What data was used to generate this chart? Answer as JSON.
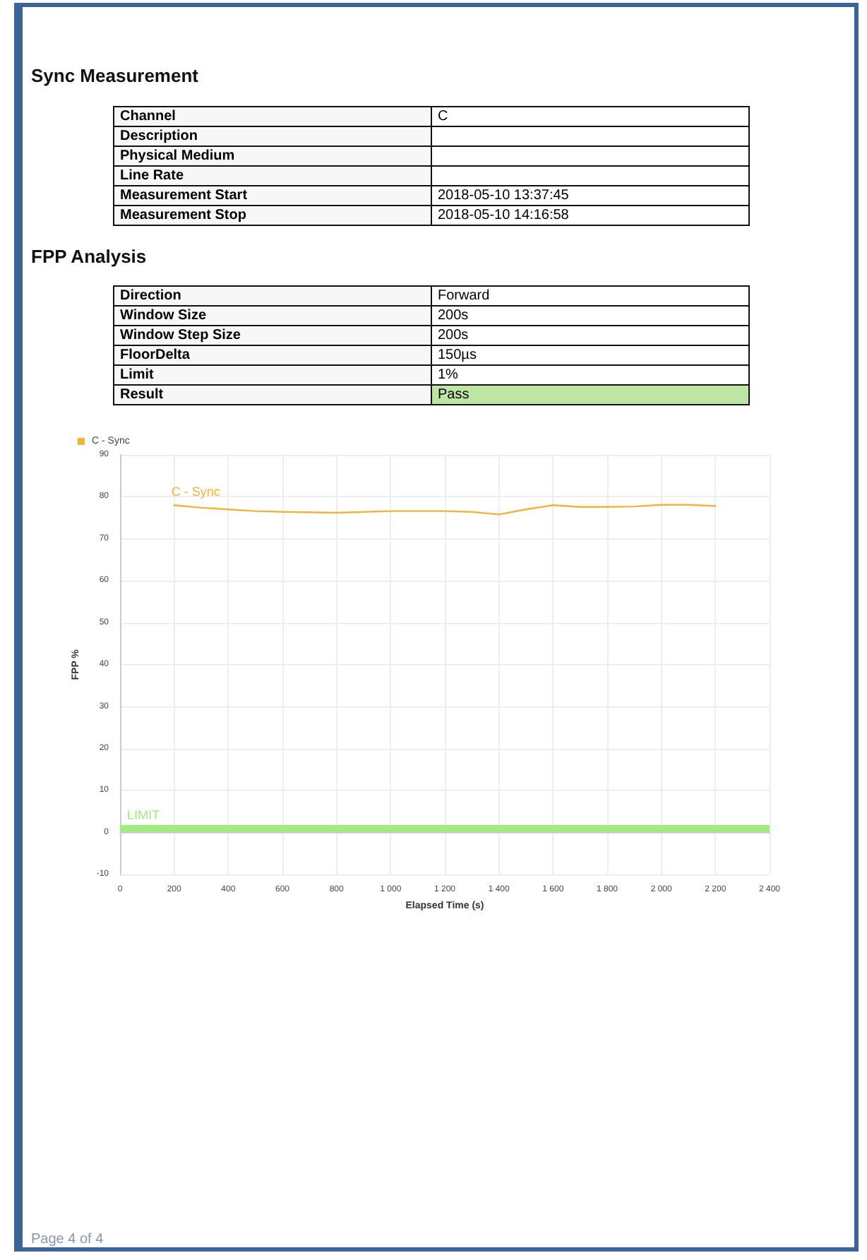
{
  "chart_data": [
    {
      "type": "other",
      "title": "Sync Measurement",
      "annotations": [
        "Channel",
        "C",
        "Description",
        null,
        "Physical Medium",
        null,
        "Line Rate",
        null,
        "Measurement Start",
        "2018-05-10 13:37:45",
        "Measurement Stop",
        "2018-05-10 14:16:58"
      ]
    },
    {
      "type": "other",
      "title": "FPP Analysis",
      "annotations": [
        "Direction",
        "Forward",
        "Window Size",
        "200s",
        "Window Step Size",
        "200s",
        "FloorDelta",
        "150µs",
        "Limit",
        "1%",
        "Result",
        "Pass"
      ]
    },
    {
      "type": "line",
      "xlabel": "Elapsed Time (s)",
      "ylabel": "FPP %",
      "legend": "top left",
      "grid": true,
      "marker": "none",
      "line_style": "solid",
      "xlim": [
        0,
        2400
      ],
      "xticks": [
        0,
        200,
        400,
        600,
        800,
        {
          "value": 1000,
          "label": "1 000"
        },
        {
          "value": 1200,
          "label": "1 200"
        },
        {
          "value": 1400,
          "label": "1 400"
        },
        {
          "value": 1600,
          "label": "1 600"
        },
        {
          "value": 1800,
          "label": "1 800"
        },
        {
          "value": 2000,
          "label": "2 000"
        },
        {
          "value": 2200,
          "label": "2 200"
        },
        {
          "value": 2400,
          "label": "2 400"
        }
      ],
      "ylim": [
        -10,
        90
      ],
      "yticks": [
        -10,
        0,
        10,
        20,
        30,
        40,
        50,
        60,
        70,
        80,
        90
      ],
      "x": [
        200,
        300,
        400,
        500,
        600,
        800,
        1000,
        1200,
        1300,
        1400,
        1500,
        1600,
        1700,
        1800,
        1900,
        2000,
        2100,
        2200
      ],
      "series": [
        {
          "name": "C - Sync",
          "color": "#f0b43c",
          "values": [
            78,
            77.4,
            77,
            76.6,
            76.4,
            76.2,
            76.6,
            76.6,
            76.4,
            75.8,
            77,
            78,
            77.6,
            77.6,
            77.7,
            78.1,
            78.1,
            77.8
          ]
        }
      ],
      "ref_lines": [
        {
          "axis": "y",
          "value": 1,
          "label": "LIMIT",
          "color": "#a0ec80"
        }
      ],
      "annotations": [
        "Page 4 of 4"
      ]
    }
  ]
}
